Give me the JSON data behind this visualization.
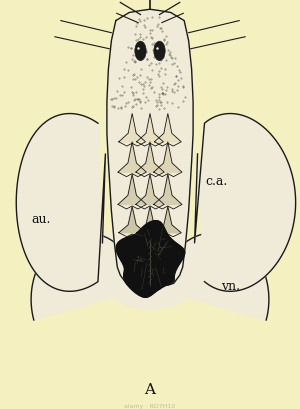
{
  "background_color": "#f5f0c0",
  "title": "A",
  "labels": {
    "ca": "c.a.",
    "au": "au.",
    "vn": "vn."
  },
  "label_positions": {
    "ca": [
      0.685,
      0.555
    ],
    "au": [
      0.1,
      0.46
    ],
    "vn": [
      0.74,
      0.295
    ]
  },
  "watermark": "alamy - RD7H10",
  "fig_width": 3.0,
  "fig_height": 4.1,
  "dpi": 100,
  "line_color": "#1a1a1a",
  "fill_light": "#f0ead8",
  "fill_medium": "#e0d8b8",
  "fill_dark": "#222222"
}
